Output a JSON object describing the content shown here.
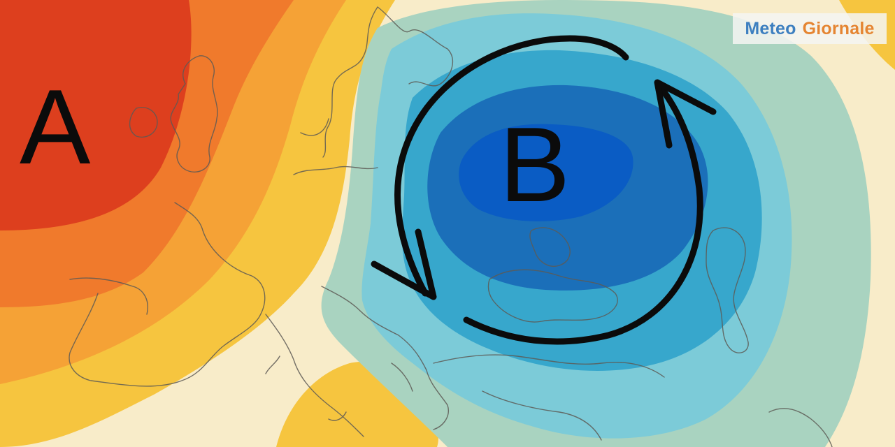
{
  "map": {
    "high_pressure": {
      "label": "A"
    },
    "low_pressure": {
      "label": "B"
    },
    "circulation": "counter-clockwise cyclonic rotation around low",
    "palette": {
      "high_core": "#dd3f1e",
      "high_outer": "#f07a2c",
      "warm": "#f5a236",
      "mild": "#f6c53f",
      "neutral": "#f8ecc9",
      "cool": "#a9d3c0",
      "cold": "#7ccbd8",
      "colder": "#37a7cc",
      "cold_core": "#1b6fb9",
      "cold_center": "#0a5cc4"
    }
  },
  "logo": {
    "word1": "Meteo",
    "word2": "Giornale",
    "color1": "#3d7fc0",
    "color2": "#e58532"
  }
}
